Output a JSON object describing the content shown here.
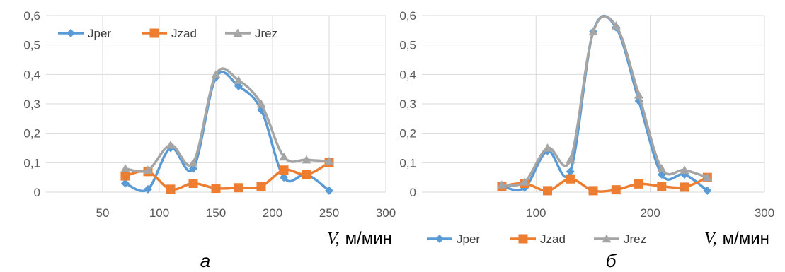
{
  "colors": {
    "jper": "#5b9bd5",
    "jzad": "#ed7d31",
    "jrez": "#a5a5a5",
    "grid": "#d9d9d9",
    "tick_text": "#595959",
    "axis_text": "#000000"
  },
  "chart_data": [
    {
      "type": "line",
      "panel_label": "а",
      "xlabel_italic": "V,",
      "xlabel_unit": "м/мин",
      "xlim": [
        0,
        300
      ],
      "ylim": [
        0,
        0.6
      ],
      "x_ticks": [
        "50",
        "100",
        "150",
        "200",
        "250",
        "300"
      ],
      "y_ticks": [
        "0",
        "0,1",
        "0,2",
        "0,3",
        "0,4",
        "0,5",
        "0,6"
      ],
      "grid": true,
      "legend_position": "top",
      "x": [
        70,
        90,
        110,
        130,
        150,
        170,
        190,
        210,
        230,
        250
      ],
      "series": [
        {
          "name": "Jper",
          "marker": "diamond",
          "color_key": "jper",
          "values": [
            0.03,
            0.01,
            0.15,
            0.08,
            0.39,
            0.36,
            0.28,
            0.05,
            0.06,
            0.005
          ]
        },
        {
          "name": "Jzad",
          "marker": "square",
          "color_key": "jzad",
          "values": [
            0.055,
            0.07,
            0.01,
            0.03,
            0.013,
            0.015,
            0.02,
            0.075,
            0.06,
            0.1
          ]
        },
        {
          "name": "Jrez",
          "marker": "triangle",
          "color_key": "jrez",
          "values": [
            0.08,
            0.075,
            0.16,
            0.1,
            0.4,
            0.38,
            0.3,
            0.12,
            0.11,
            0.105
          ]
        }
      ]
    },
    {
      "type": "line",
      "panel_label": "б",
      "xlabel_italic": "V,",
      "xlabel_unit": "м/мин",
      "xlim": [
        0,
        300
      ],
      "ylim": [
        0,
        0.6
      ],
      "x_ticks": [
        "100",
        "200",
        "300"
      ],
      "y_ticks": [
        "0",
        "0,1",
        "0,2",
        "0,3",
        "0,4",
        "0,5",
        "0,6"
      ],
      "grid": true,
      "legend_position": "bottom",
      "x": [
        70,
        90,
        110,
        130,
        150,
        170,
        190,
        210,
        230,
        250
      ],
      "series": [
        {
          "name": "Jper",
          "marker": "diamond",
          "color_key": "jper",
          "values": [
            0.02,
            0.015,
            0.14,
            0.07,
            0.545,
            0.56,
            0.31,
            0.06,
            0.06,
            0.005
          ]
        },
        {
          "name": "Jzad",
          "marker": "square",
          "color_key": "jzad",
          "values": [
            0.02,
            0.03,
            0.005,
            0.045,
            0.005,
            0.008,
            0.028,
            0.02,
            0.017,
            0.05
          ]
        },
        {
          "name": "Jrez",
          "marker": "triangle",
          "color_key": "jrez",
          "values": [
            0.025,
            0.035,
            0.15,
            0.11,
            0.545,
            0.565,
            0.33,
            0.08,
            0.075,
            0.05
          ]
        }
      ]
    }
  ]
}
